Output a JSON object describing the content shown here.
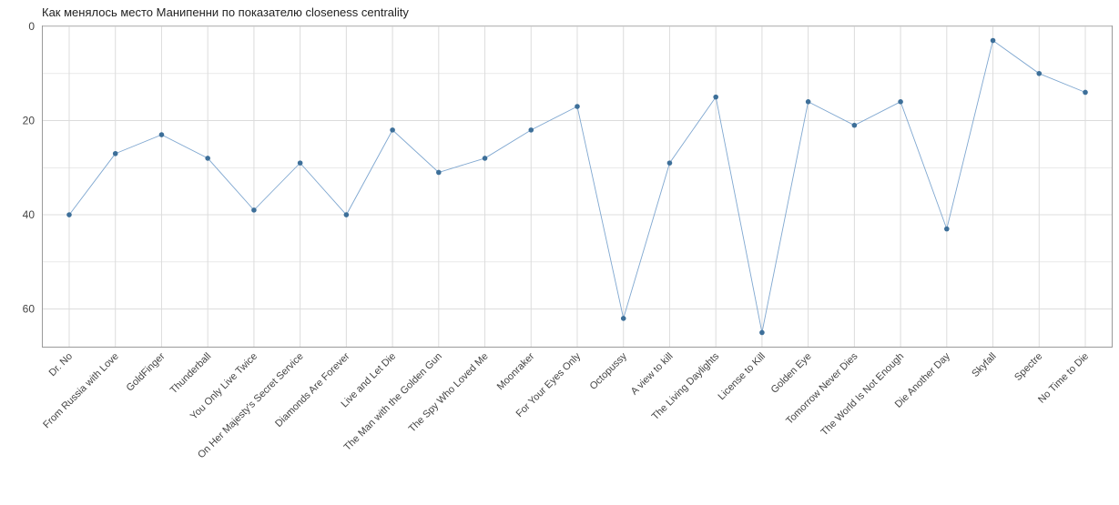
{
  "chart_data": {
    "type": "line",
    "title": "Как менялось место Манипенни по показателю closeness centrality",
    "xlabel": "",
    "ylabel": "",
    "y_reversed": true,
    "ylim": [
      0,
      68
    ],
    "yticks": [
      0,
      20,
      40,
      60
    ],
    "grid": true,
    "colors": {
      "line": "#7fa7d0",
      "point": "#3d6f99",
      "grid": "#dcdcdc",
      "border": "#9a9a9a"
    },
    "categories": [
      "Dr. No",
      "From Russia with Love",
      "GoldFinger",
      "Thunderball",
      "You Only Live Twice",
      "On Her Majesty's Secret Service",
      "Diamonds Are Forever",
      "Live and Let Die",
      "The Man with the Golden Gun",
      "The Spy Who Loved Me",
      "Moonraker",
      "For Your Eyes Only",
      "Octopussy",
      "A view to kill",
      "The Living Daylights",
      "License to Kill",
      "Golden Eye",
      "Tomorrow Never Dies",
      "The World Is Not Enough",
      "Die Another Day",
      "Skyfall",
      "Spectre",
      "No Time to Die"
    ],
    "values": [
      40,
      27,
      23,
      28,
      39,
      29,
      40,
      22,
      31,
      28,
      22,
      17,
      62,
      29,
      15,
      65,
      16,
      21,
      16,
      43,
      3,
      10,
      14
    ]
  }
}
